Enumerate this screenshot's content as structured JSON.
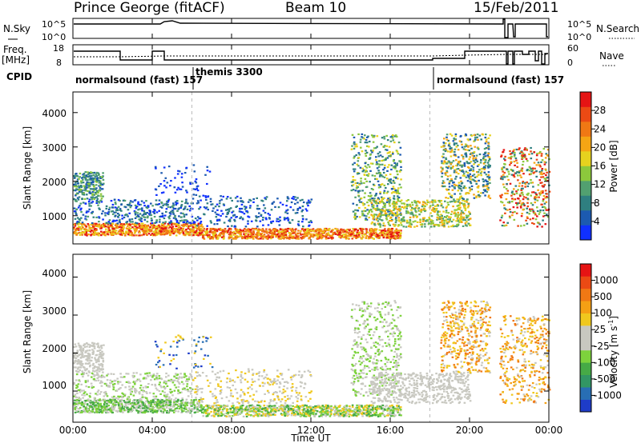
{
  "header": {
    "station": "Prince George (fitACF)",
    "beam": "Beam 10",
    "date": "15/Feb/2011"
  },
  "top_panels": {
    "nsky_label": "N.Sky",
    "nsky_ticks": [
      "10^5",
      "10^0"
    ],
    "nsearch_label": "N.Search",
    "nsearch_ticks": [
      "10^5",
      "10^0"
    ],
    "freq_label_1": "Freq.",
    "freq_label_2": "[MHz]",
    "freq_ticks": [
      "18",
      "8"
    ],
    "nave_label": "Nave",
    "nave_ticks": [
      "60",
      "0"
    ],
    "cpid_label": "CPID",
    "cpid_segments": [
      {
        "label": "normalsound (fast) 157",
        "start": 0.0
      },
      {
        "label": "themis 3300",
        "start": 6.0
      },
      {
        "label": "normalsound (fast) 157",
        "start": 18.0
      }
    ]
  },
  "chart_data": [
    {
      "type": "heatmap",
      "title": "Power",
      "ylabel": "Slant Range [km]",
      "xlabel": "Time UT",
      "xlim": [
        0,
        24
      ],
      "ylim": [
        180,
        4600
      ],
      "yticks": [
        "1000",
        "2000",
        "3000",
        "4000"
      ],
      "xticks": [
        "00:00",
        "04:00",
        "08:00",
        "12:00",
        "16:00",
        "20:00",
        "00:00"
      ],
      "colorbar": {
        "label": "Power [dB]",
        "ticks": [
          "4",
          "8",
          "12",
          "16",
          "20",
          "24",
          "28"
        ],
        "colors": [
          "#1030ff",
          "#1c5ab0",
          "#2f7f80",
          "#52a070",
          "#8cc83c",
          "#e6d21e",
          "#f5a514",
          "#f07814",
          "#eb4a14",
          "#e51414"
        ]
      }
    },
    {
      "type": "heatmap",
      "title": "Velocity",
      "ylabel": "Slant Range [km]",
      "xlabel": "Time UT",
      "xlim": [
        0,
        24
      ],
      "ylim": [
        180,
        4600
      ],
      "yticks": [
        "1000",
        "2000",
        "3000",
        "4000"
      ],
      "xticks": [
        "00:00",
        "04:00",
        "08:00",
        "12:00",
        "16:00",
        "20:00",
        "00:00"
      ],
      "colorbar": {
        "label": "Velocity [m s",
        "label_sup": "-1",
        "label_end": "]",
        "ticks": [
          "1000",
          "500",
          "100",
          "25",
          "-25",
          "-100",
          "-500",
          "-1000"
        ],
        "colors": [
          "#1e3cc8",
          "#286eb4",
          "#329664",
          "#46aa46",
          "#7dd23c",
          "#c8c8c0",
          "#c8c8c0",
          "#f0c81e",
          "#f5a014",
          "#f07814",
          "#eb4a14",
          "#e61414"
        ]
      }
    }
  ]
}
